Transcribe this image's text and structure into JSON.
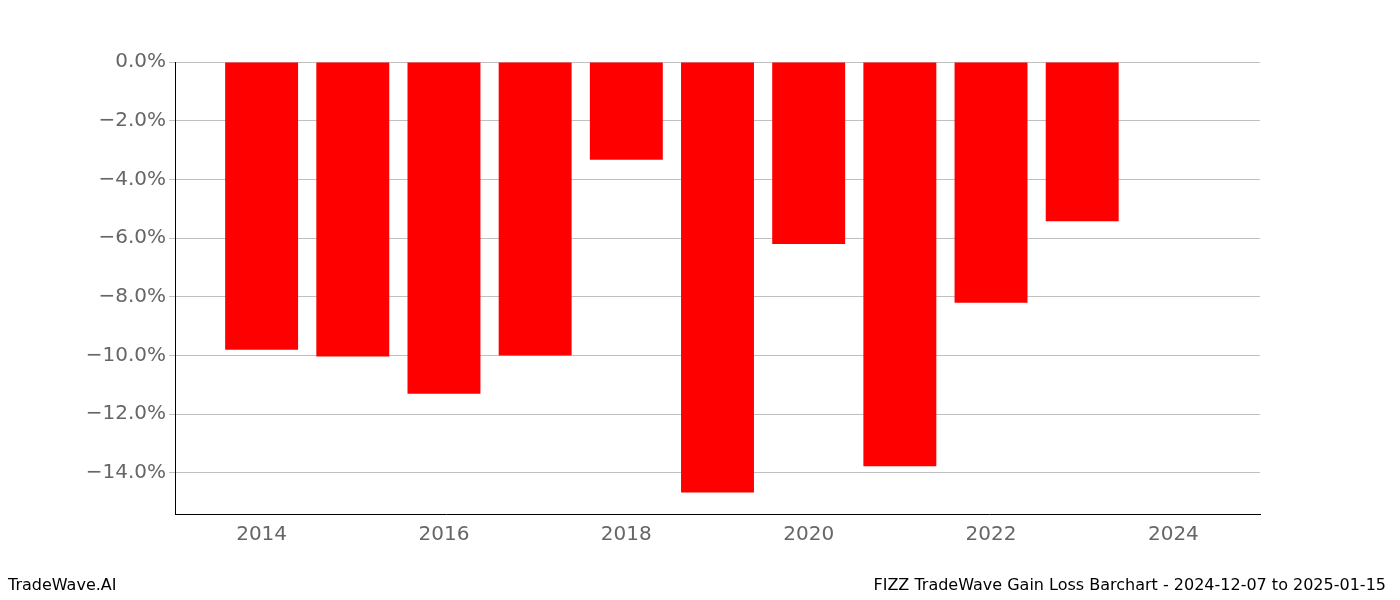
{
  "chart_data": {
    "type": "bar",
    "title": "FIZZ TradeWave Gain Loss Barchart - 2024-12-07 to 2025-01-15",
    "annotation": "TradeWave.AI",
    "x": [
      2014,
      2015,
      2016,
      2017,
      2018,
      2019,
      2020,
      2021,
      2022,
      2023
    ],
    "values": [
      -9.8,
      -10.03,
      -11.3,
      -10.0,
      -3.33,
      -14.67,
      -6.2,
      -13.77,
      -8.2,
      -5.43
    ],
    "color": "#ff0000",
    "xlim": [
      2013.05,
      2024.95
    ],
    "xticks": [
      2014,
      2016,
      2018,
      2020,
      2022,
      2024
    ],
    "ylim": [
      -15.4,
      0
    ],
    "yticks": [
      {
        "value": -14,
        "label": "−14.0%"
      },
      {
        "value": -12,
        "label": "−12.0%"
      },
      {
        "value": -10,
        "label": "−10.0%"
      },
      {
        "value": -8,
        "label": "−8.0%"
      },
      {
        "value": -6,
        "label": "−6.0%"
      },
      {
        "value": -4,
        "label": "−4.0%"
      },
      {
        "value": -2,
        "label": "−2.0%"
      },
      {
        "value": 0,
        "label": "0.0%"
      }
    ],
    "grid": true
  }
}
